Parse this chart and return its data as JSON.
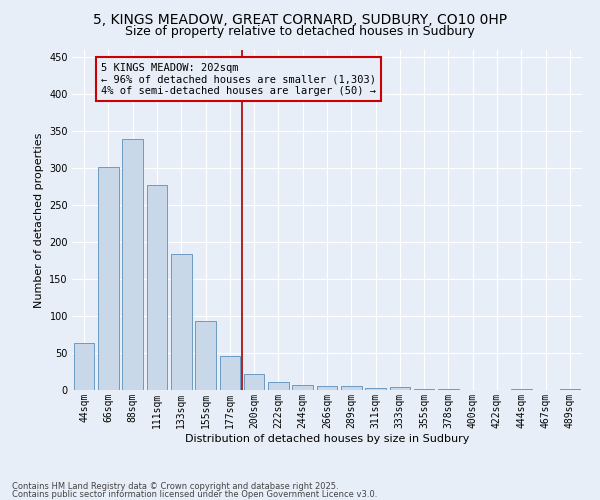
{
  "title": "5, KINGS MEADOW, GREAT CORNARD, SUDBURY, CO10 0HP",
  "subtitle": "Size of property relative to detached houses in Sudbury",
  "xlabel": "Distribution of detached houses by size in Sudbury",
  "ylabel": "Number of detached properties",
  "footer1": "Contains HM Land Registry data © Crown copyright and database right 2025.",
  "footer2": "Contains public sector information licensed under the Open Government Licence v3.0.",
  "bins": [
    "44sqm",
    "66sqm",
    "88sqm",
    "111sqm",
    "133sqm",
    "155sqm",
    "177sqm",
    "200sqm",
    "222sqm",
    "244sqm",
    "266sqm",
    "289sqm",
    "311sqm",
    "333sqm",
    "355sqm",
    "378sqm",
    "400sqm",
    "422sqm",
    "444sqm",
    "467sqm",
    "489sqm"
  ],
  "bar_values": [
    63,
    302,
    340,
    277,
    184,
    93,
    46,
    21,
    11,
    7,
    5,
    5,
    3,
    4,
    2,
    1,
    0,
    0,
    1,
    0,
    2
  ],
  "bar_color": "#c8d8e8",
  "bar_edge_color": "#5b8fbb",
  "annotation_line_color": "#aa0000",
  "annotation_box_color": "#cc0000",
  "annotation_text": "5 KINGS MEADOW: 202sqm\n← 96% of detached houses are smaller (1,303)\n4% of semi-detached houses are larger (50) →",
  "annotation_text_size": 7.5,
  "ylim": [
    0,
    460
  ],
  "yticks": [
    0,
    50,
    100,
    150,
    200,
    250,
    300,
    350,
    400,
    450
  ],
  "bg_color": "#e8eef8",
  "grid_color": "#ffffff",
  "title_fontsize": 10,
  "subtitle_fontsize": 9,
  "ylabel_fontsize": 8,
  "xlabel_fontsize": 8,
  "tick_label_fontsize": 7,
  "footer_fontsize": 6
}
